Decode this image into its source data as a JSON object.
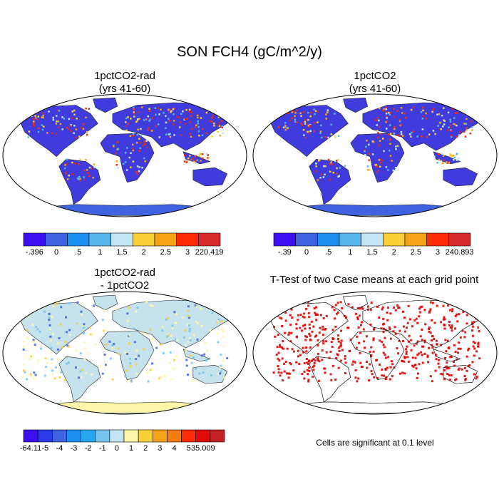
{
  "main_title": "SON FCH4 (gC/m^2/y)",
  "panels": [
    {
      "title_line1": "1pctCO2-rad",
      "title_line2": "(yrs 41-60)"
    },
    {
      "title_line1": "1pctCO2",
      "title_line2": "(yrs 41-60)"
    },
    {
      "title_line1": "1pctCO2-rad",
      "title_line2": "- 1pctCO2"
    },
    {
      "title_line1": "T-Test of two Case means at each grid point",
      "title_line2": ""
    }
  ],
  "note": "Cells are significant at 0.1 level",
  "colorbars": [
    {
      "colors": [
        "#3b0ff0",
        "#3e62e0",
        "#1b8ff0",
        "#56b7ee",
        "#c2e4f4",
        "#f9cf36",
        "#f6a215",
        "#fe2a06",
        "#d62a2a"
      ],
      "labels": [
        "-.396",
        "0",
        ".5",
        "1",
        "1.5",
        "2",
        "2.5",
        "3",
        "220.419"
      ]
    },
    {
      "colors": [
        "#3b0ff0",
        "#3e62e0",
        "#1b8ff0",
        "#56b7ee",
        "#c2e4f4",
        "#f9cf36",
        "#f6a215",
        "#fe2a06",
        "#d62a2a"
      ],
      "labels": [
        "-.39",
        "0",
        ".5",
        "1",
        "1.5",
        "2",
        "2.5",
        "3",
        "240.893"
      ]
    },
    {
      "colors": [
        "#3b0ff0",
        "#2b3ae8",
        "#3e62e0",
        "#1b8ff0",
        "#27a8ee",
        "#76c4ee",
        "#c2e4f4",
        "#fff5a8",
        "#f9cf36",
        "#f6a215",
        "#f57b12",
        "#fe2a06",
        "#e00808",
        "#c42222"
      ],
      "labels": [
        "-64.11",
        "-5",
        "-4",
        "-3",
        "-2",
        "-1",
        "0",
        "1",
        "2",
        "3",
        "4",
        "5",
        "35.009"
      ]
    }
  ],
  "map_fills": {
    "panel1": "#3f3bdc",
    "panel2": "#3f3bdc",
    "panel3": "#c6e2ec",
    "panel4": "#ffffff",
    "signif": "#e60000",
    "antarctica_1": "#3e62e0",
    "antarctica_3": "#fff5a8"
  }
}
